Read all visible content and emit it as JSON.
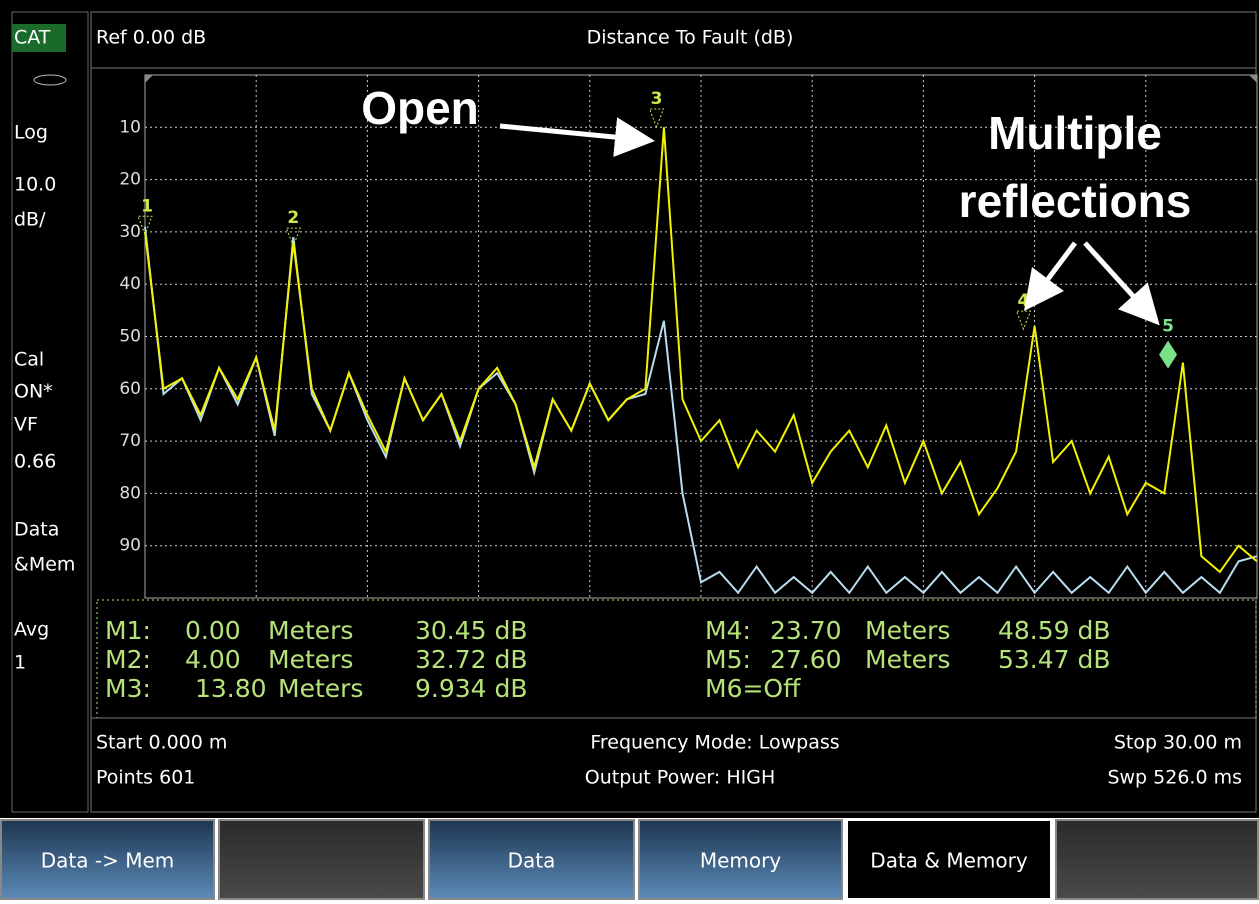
{
  "sidebar": [
    "CAT",
    "Log",
    "10.0",
    "dB/",
    "Cal",
    "ON*",
    "VF",
    "0.66",
    "Data",
    "&Mem",
    "Avg",
    "1"
  ],
  "header": {
    "ref": "Ref 0.00 dB",
    "title": "Distance To Fault (dB)"
  },
  "chart_data": {
    "type": "line",
    "x": [
      0,
      0.5,
      1,
      1.5,
      2,
      2.5,
      3,
      3.5,
      4,
      4.5,
      5,
      5.5,
      6,
      6.5,
      7,
      7.5,
      8,
      8.5,
      9,
      9.5,
      10,
      10.5,
      11,
      11.5,
      12,
      12.5,
      13,
      13.5,
      14,
      14.5,
      15,
      15.5,
      16,
      16.5,
      17,
      17.5,
      18,
      18.5,
      19,
      19.5,
      20,
      20.5,
      21,
      21.5,
      22,
      22.5,
      23,
      23.5,
      24,
      24.5,
      25,
      25.5,
      26,
      26.5,
      27,
      27.5,
      28,
      28.5,
      29,
      29.5,
      30
    ],
    "series": [
      {
        "color": "#f2f200",
        "values": [
          30,
          60,
          58,
          65,
          56,
          62,
          54,
          68,
          32,
          60,
          68,
          57,
          65,
          72,
          58,
          66,
          61,
          70,
          60,
          56,
          63,
          75,
          62,
          68,
          59,
          66,
          62,
          60,
          10,
          62,
          70,
          66,
          75,
          68,
          72,
          65,
          78,
          72,
          68,
          75,
          67,
          78,
          70,
          80,
          74,
          84,
          79,
          72,
          48,
          74,
          70,
          80,
          73,
          84,
          78,
          80,
          55,
          92,
          95,
          90,
          93
        ]
      },
      {
        "color": "#b8dcef",
        "values": [
          29,
          61,
          58,
          66,
          56,
          63,
          54,
          69,
          31,
          61,
          68,
          57,
          66,
          73,
          58,
          66,
          61,
          71,
          60,
          57,
          63,
          76,
          62,
          68,
          59,
          66,
          62,
          61,
          47,
          80,
          97,
          95,
          99,
          94,
          99,
          96,
          99,
          95,
          99,
          94,
          99,
          96,
          99,
          95,
          99,
          96,
          99,
          94,
          99,
          95,
          99,
          96,
          99,
          94,
          99,
          95,
          99,
          96,
          99,
          93,
          92
        ]
      }
    ],
    "xlim": [
      0,
      30
    ],
    "ylim": [
      100,
      0
    ],
    "yticks": [
      10,
      20,
      30,
      40,
      50,
      60,
      70,
      80,
      90
    ],
    "grid": true,
    "markers": [
      {
        "label": "1",
        "x": 0,
        "y": 30.45
      },
      {
        "label": "2",
        "x": 4,
        "y": 32.72
      },
      {
        "label": "3",
        "x": 13.8,
        "y": 9.934
      },
      {
        "label": "4",
        "x": 23.7,
        "y": 48.59
      },
      {
        "label": "5",
        "x": 27.6,
        "y": 53.47
      }
    ],
    "annotations": [
      "Open",
      "Multiple",
      "reflections"
    ]
  },
  "marker_table": [
    [
      "M1:",
      "0.00",
      "Meters",
      "30.45 dB"
    ],
    [
      "M2:",
      "4.00",
      "Meters",
      "32.72 dB"
    ],
    [
      "M3:",
      "13.80",
      "Meters",
      "9.934 dB"
    ],
    [
      "M4:",
      "23.70",
      "Meters",
      "48.59 dB"
    ],
    [
      "M5:",
      "27.60",
      "Meters",
      "53.47 dB"
    ],
    [
      "M6=Off"
    ]
  ],
  "footer": {
    "start": "Start 0.000 m",
    "points": "Points 601",
    "mode": "Frequency Mode: Lowpass",
    "power": "Output Power: HIGH",
    "stop": "Stop 30.00 m",
    "sweep": "Swp 526.0 ms"
  },
  "softkeys": [
    "Data -> Mem",
    "",
    "Data",
    "Memory",
    "Data & Memory",
    ""
  ]
}
